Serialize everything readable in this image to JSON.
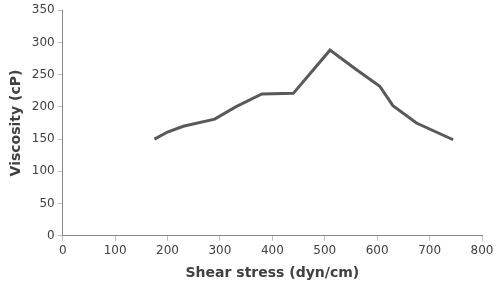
{
  "chart_data": {
    "type": "line",
    "x_label": "Shear stress (dyn/cm)",
    "y_label": "Viscosity (cP)",
    "x": [
      175,
      200,
      230,
      290,
      330,
      380,
      440,
      510,
      560,
      605,
      630,
      675,
      745
    ],
    "values": [
      150,
      161,
      170,
      181,
      200,
      220,
      221,
      288,
      258,
      232,
      202,
      175,
      149
    ],
    "color": "#595959",
    "xlim": [
      0,
      800
    ],
    "xticks": [
      0,
      100,
      200,
      300,
      400,
      500,
      600,
      700,
      800
    ],
    "ylim": [
      0,
      350
    ],
    "yticks": [
      0,
      50,
      100,
      150,
      200,
      250,
      300,
      350
    ],
    "grid": false
  }
}
